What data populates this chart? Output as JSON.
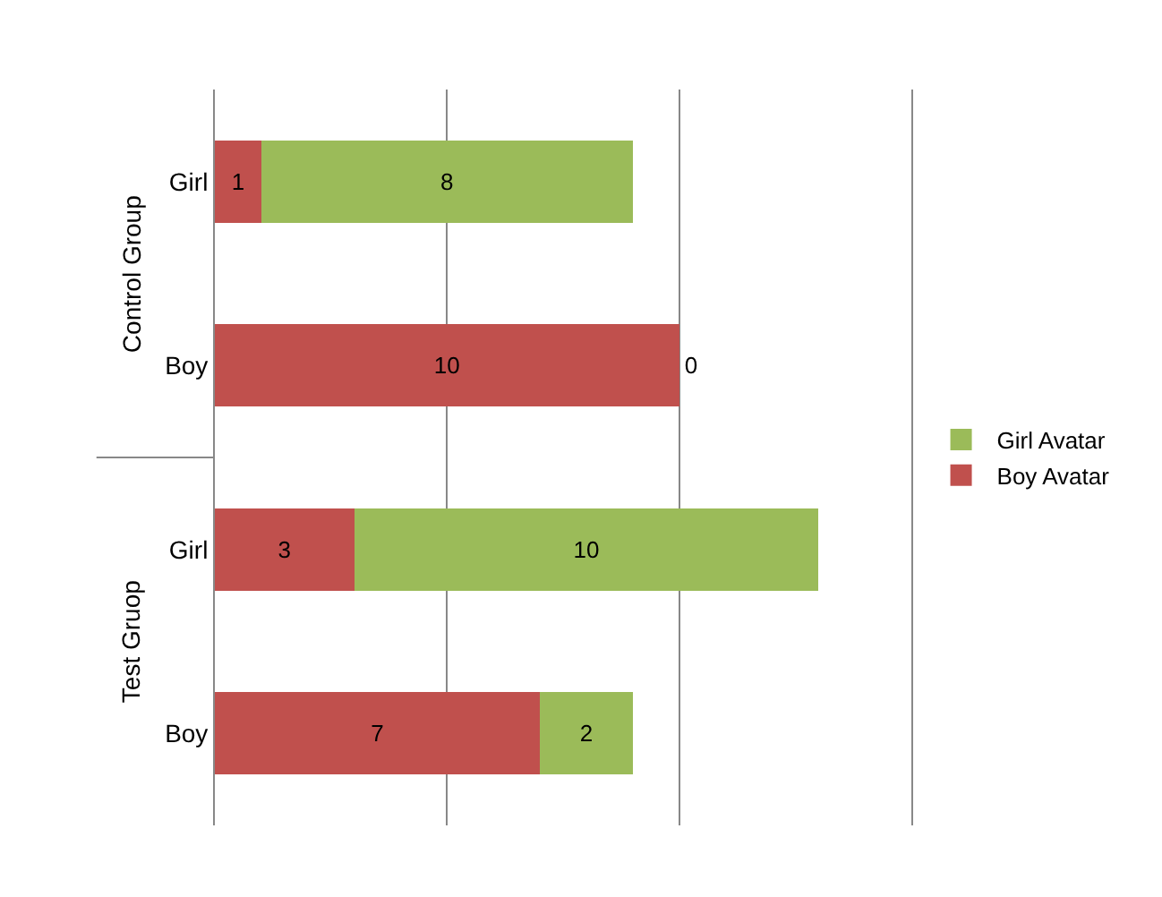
{
  "chart_data": {
    "type": "bar",
    "orientation": "horizontal",
    "stacked": true,
    "categories": [
      "Girl",
      "Boy",
      "Girl",
      "Boy"
    ],
    "series": [
      {
        "name": "Boy Avatar",
        "color": "#c0504d",
        "values": [
          1,
          10,
          3,
          7
        ]
      },
      {
        "name": "Girl Avatar",
        "color": "#9bbb59",
        "values": [
          8,
          0,
          10,
          2
        ]
      }
    ],
    "xlim": [
      0,
      15
    ],
    "xticks": [
      {
        "value": 0,
        "label": null
      },
      {
        "value": 5,
        "label": null
      },
      {
        "value": 10,
        "label": null
      },
      {
        "value": 15,
        "label": null
      }
    ],
    "grid": "x",
    "tick_labels": "y",
    "legend": "right",
    "data_labels": true,
    "annotations": [
      "Control Group",
      "Test Gruop"
    ]
  }
}
